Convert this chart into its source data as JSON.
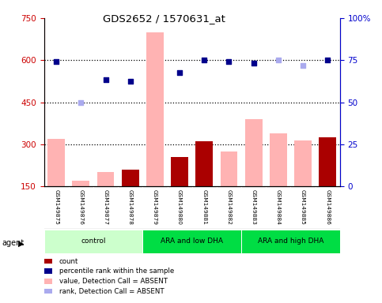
{
  "title": "GDS2652 / 1570631_at",
  "samples": [
    "GSM149875",
    "GSM149876",
    "GSM149877",
    "GSM149878",
    "GSM149879",
    "GSM149880",
    "GSM149881",
    "GSM149882",
    "GSM149883",
    "GSM149884",
    "GSM149885",
    "GSM149886"
  ],
  "bar_values": [
    320,
    170,
    200,
    210,
    700,
    255,
    310,
    275,
    390,
    340,
    315,
    325
  ],
  "bar_absent": [
    true,
    true,
    true,
    false,
    true,
    false,
    false,
    true,
    true,
    true,
    true,
    false
  ],
  "dot_values": [
    595,
    450,
    530,
    525,
    null,
    555,
    600,
    595,
    590,
    600,
    580,
    600
  ],
  "dot_absent": [
    false,
    true,
    false,
    false,
    null,
    false,
    false,
    false,
    false,
    true,
    true,
    false
  ],
  "left_ylim": [
    150,
    750
  ],
  "left_yticks": [
    150,
    300,
    450,
    600,
    750
  ],
  "right_ylim": [
    0,
    100
  ],
  "right_yticks": [
    0,
    25,
    50,
    75,
    100
  ],
  "left_color": "#cc0000",
  "right_color": "#0000cc",
  "bar_present_color": "#aa0000",
  "bar_absent_color": "#ffb3b3",
  "dot_present_color": "#00008b",
  "dot_absent_color": "#aaaaee",
  "plot_bg": "#ffffff",
  "label_bg": "#d3d3d3",
  "grid_lines": [
    300,
    450,
    600
  ],
  "group_ranges": [
    {
      "start": 0,
      "end": 3,
      "label": "control",
      "color": "#ccffcc"
    },
    {
      "start": 4,
      "end": 7,
      "label": "ARA and low DHA",
      "color": "#00dd44"
    },
    {
      "start": 8,
      "end": 11,
      "label": "ARA and high DHA",
      "color": "#00dd44"
    }
  ],
  "legend_items": [
    {
      "label": "count",
      "color": "#aa0000"
    },
    {
      "label": "percentile rank within the sample",
      "color": "#00008b"
    },
    {
      "label": "value, Detection Call = ABSENT",
      "color": "#ffb3b3"
    },
    {
      "label": "rank, Detection Call = ABSENT",
      "color": "#aaaaee"
    }
  ]
}
